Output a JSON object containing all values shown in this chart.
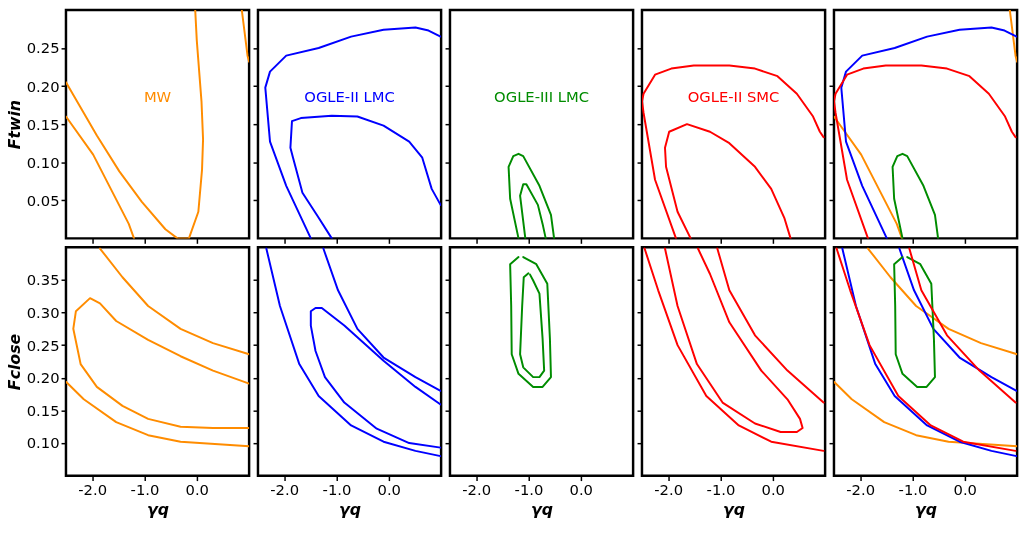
{
  "chart_data": [
    {
      "type": "line",
      "ylabel": "Ftwin",
      "annotations": [
        "MW"
      ],
      "tick_labels": "y",
      "xlim": [
        -2.5,
        1.0
      ],
      "ylim": [
        0,
        0.3
      ],
      "xticks": [
        -2,
        -1,
        0
      ],
      "yticks": [
        0.05,
        {
          "value": 0.1,
          "label": "0.10"
        },
        0.15,
        {
          "value": 0.2,
          "label": "0.20"
        },
        0.25
      ],
      "series": [
        {
          "color": "#ff8c00",
          "x": [
            -2.5,
            -1.91,
            -1.48,
            -1.05,
            -0.6,
            -0.37,
            -0.15,
            0.03,
            0.1,
            0.12,
            0.09,
            0.0,
            -0.03
          ],
          "values": [
            0.205,
            0.135,
            0.088,
            0.048,
            0.012,
            0.0,
            0.0,
            0.035,
            0.09,
            0.13,
            0.18,
            0.26,
            0.3
          ]
        },
        {
          "color": "#ff8c00",
          "x": [
            -2.5,
            -1.98,
            -1.3,
            -1.2,
            null,
            0.86,
            0.97,
            1.0
          ],
          "values": [
            0.16,
            0.11,
            0.019,
            0.0,
            null,
            0.3,
            0.24,
            0.232
          ]
        }
      ]
    },
    {
      "type": "line",
      "annotations": [
        "OGLE-II LMC"
      ],
      "tick_labels": false,
      "xlim": [
        -2.5,
        1.0
      ],
      "ylim": [
        0,
        0.3
      ],
      "xticks": [
        -2,
        -1,
        0
      ],
      "yticks": [
        0.05,
        0.1,
        0.15,
        0.2,
        0.25
      ],
      "series": [
        {
          "color": "#0000ff",
          "x": [
            -1.09,
            -1.34,
            -1.65,
            -1.83,
            -1.88,
            -1.85,
            -1.68,
            -1.09,
            -0.6,
            -0.1,
            0.39,
            0.64,
            0.82,
            0.99
          ],
          "values": [
            0.0,
            0.027,
            0.06,
            0.106,
            0.119,
            0.154,
            0.158,
            0.161,
            0.16,
            0.148,
            0.127,
            0.106,
            0.065,
            0.044
          ]
        },
        {
          "color": "#0000ff",
          "x": [
            -1.49,
            -1.96,
            -2.27,
            -2.36,
            -2.27,
            -1.96,
            -1.34,
            -0.72,
            -0.1,
            0.51,
            0.76,
            0.99
          ],
          "values": [
            0.0,
            0.069,
            0.127,
            0.198,
            0.219,
            0.24,
            0.25,
            0.265,
            0.274,
            0.277,
            0.273,
            0.265
          ]
        }
      ]
    },
    {
      "type": "line",
      "annotations": [
        "OGLE-III LMC"
      ],
      "tick_labels": false,
      "xlim": [
        -2.5,
        1.0
      ],
      "ylim": [
        0,
        0.3
      ],
      "xticks": [
        -2,
        -1,
        0
      ],
      "yticks": [
        0.05,
        0.1,
        0.15,
        0.2,
        0.25
      ],
      "series": [
        {
          "color": "#008c00",
          "x": [
            -1.06,
            -1.16,
            -1.1,
            -1.04,
            -0.82,
            -0.73,
            -0.67
          ],
          "values": [
            0.0,
            0.056,
            0.071,
            0.071,
            0.044,
            0.019,
            0.0
          ]
        },
        {
          "color": "#008c00",
          "x": [
            -1.19,
            -1.35,
            -1.38,
            -1.29,
            -1.19,
            -1.1,
            -0.79,
            -0.57,
            -0.51
          ],
          "values": [
            0.0,
            0.052,
            0.094,
            0.108,
            0.111,
            0.108,
            0.069,
            0.031,
            0.0
          ]
        }
      ]
    },
    {
      "type": "line",
      "annotations": [
        "OGLE-II SMC"
      ],
      "tick_labels": false,
      "xlim": [
        -2.5,
        1.0
      ],
      "ylim": [
        0,
        0.3
      ],
      "xticks": [
        -2,
        -1,
        0
      ],
      "yticks": [
        0.05,
        0.1,
        0.15,
        0.2,
        0.25
      ],
      "series": [
        {
          "color": "#ff0000",
          "x": [
            -1.57,
            -1.82,
            -2.04,
            -2.06,
            -1.98,
            -1.64,
            -1.2,
            -0.83,
            -0.34,
            -0.03,
            0.22,
            0.34
          ],
          "values": [
            0.0,
            0.035,
            0.094,
            0.119,
            0.14,
            0.15,
            0.14,
            0.125,
            0.094,
            0.065,
            0.027,
            0.0
          ]
        },
        {
          "color": "#ff0000",
          "x": [
            -1.85,
            -2.25,
            -2.47,
            -2.5,
            -2.47,
            -2.25,
            -1.94,
            -1.51,
            -0.83,
            -0.34,
            0.09,
            0.46,
            0.77,
            0.9,
            0.97
          ],
          "values": [
            0.0,
            0.077,
            0.165,
            0.18,
            0.19,
            0.215,
            0.223,
            0.227,
            0.227,
            0.223,
            0.213,
            0.19,
            0.16,
            0.14,
            0.133
          ]
        }
      ]
    },
    {
      "type": "line",
      "tick_labels": false,
      "xlim": [
        -2.5,
        1.0
      ],
      "ylim": [
        0,
        0.3
      ],
      "xticks": [
        -2,
        -1,
        0
      ],
      "yticks": [
        0.05,
        0.1,
        0.15,
        0.2,
        0.25
      ],
      "series": [
        {
          "color": "#ff8c00",
          "x": [
            -2.5,
            -1.98,
            -1.3,
            -1.2,
            null,
            0.86,
            0.97,
            1.0
          ],
          "values": [
            0.16,
            0.11,
            0.019,
            0.0,
            null,
            0.3,
            0.24,
            0.232
          ]
        },
        {
          "color": "#0000ff",
          "x": [
            -1.49,
            -1.96,
            -2.27,
            -2.36,
            -2.27,
            -1.96,
            -1.34,
            -0.72,
            -0.1,
            0.51,
            0.76,
            0.99
          ],
          "values": [
            0.0,
            0.069,
            0.127,
            0.198,
            0.219,
            0.24,
            0.25,
            0.265,
            0.274,
            0.277,
            0.273,
            0.265
          ]
        },
        {
          "color": "#008c00",
          "x": [
            -1.19,
            -1.35,
            -1.38,
            -1.29,
            -1.19,
            -1.1,
            -0.79,
            -0.57,
            -0.51
          ],
          "values": [
            0.0,
            0.052,
            0.094,
            0.108,
            0.111,
            0.108,
            0.069,
            0.031,
            0.0
          ]
        },
        {
          "color": "#ff0000",
          "x": [
            -1.85,
            -2.25,
            -2.47,
            -2.5,
            -2.47,
            -2.25,
            -1.94,
            -1.51,
            -0.83,
            -0.34,
            0.09,
            0.46,
            0.77,
            0.9,
            0.97
          ],
          "values": [
            0.0,
            0.077,
            0.165,
            0.18,
            0.19,
            0.215,
            0.223,
            0.227,
            0.227,
            0.223,
            0.213,
            0.19,
            0.16,
            0.14,
            0.133
          ]
        }
      ]
    },
    {
      "type": "line",
      "xlabel": "γq",
      "ylabel": "Fclose",
      "xlim": [
        -2.5,
        1.0
      ],
      "ylim": [
        0.05,
        0.4
      ],
      "xticks": [
        {
          "value": -2,
          "label": "-2.0"
        },
        {
          "value": -1,
          "label": "-1.0"
        },
        {
          "value": 0,
          "label": "0.0"
        }
      ],
      "yticks": [
        {
          "value": 0.1,
          "label": "0.10"
        },
        0.15,
        {
          "value": 0.2,
          "label": "0.20"
        },
        0.25,
        {
          "value": 0.3,
          "label": "0.30"
        },
        0.35
      ],
      "series": [
        {
          "color": "#ff8c00",
          "x": [
            1.0,
            0.31,
            -0.31,
            -0.93,
            -1.42,
            -1.91,
            -2.22,
            -2.36,
            -2.31,
            -2.04,
            -1.85,
            -1.54,
            -0.93,
            -0.31,
            0.31,
            1.0
          ],
          "values": [
            0.123,
            0.123,
            0.125,
            0.137,
            0.157,
            0.186,
            0.221,
            0.275,
            0.302,
            0.322,
            0.314,
            0.287,
            0.258,
            0.233,
            0.211,
            0.191
          ]
        },
        {
          "color": "#ff8c00",
          "x": [
            -1.85,
            -1.42,
            -0.93,
            -0.31,
            0.31,
            1.0,
            null,
            -2.5,
            -2.16,
            -1.54,
            -0.93,
            -0.31,
            1.0
          ],
          "values": [
            0.398,
            0.354,
            0.31,
            0.275,
            0.253,
            0.236,
            null,
            0.194,
            0.167,
            0.132,
            0.112,
            0.102,
            0.095
          ]
        }
      ]
    },
    {
      "type": "line",
      "xlabel": "γq",
      "tick_labels": "x",
      "xlim": [
        -2.5,
        1.0
      ],
      "ylim": [
        0.05,
        0.4
      ],
      "xticks": [
        {
          "value": -2,
          "label": "-2.0"
        },
        {
          "value": -1,
          "label": "-1.0"
        },
        {
          "value": 0,
          "label": "0.0"
        }
      ],
      "yticks": [
        0.1,
        0.15,
        0.2,
        0.25,
        0.3,
        0.35
      ],
      "series": [
        {
          "color": "#0000ff",
          "x": [
            0.99,
            0.51,
            -0.1,
            -0.85,
            -1.28,
            -1.4,
            -1.49,
            -1.49,
            -1.4,
            -1.22,
            -0.85,
            -0.23,
            0.39,
            0.99
          ],
          "values": [
            0.159,
            0.186,
            0.226,
            0.28,
            0.307,
            0.307,
            0.302,
            0.28,
            0.241,
            0.201,
            0.162,
            0.122,
            0.1,
            0.093
          ]
        },
        {
          "color": "#0000ff",
          "x": [
            -2.34,
            -2.08,
            -1.71,
            -1.34,
            -0.72,
            -0.1,
            0.51,
            0.99,
            null,
            -1.25,
            -0.97,
            -0.6,
            -0.1,
            0.51,
            0.99
          ],
          "values": [
            0.398,
            0.31,
            0.221,
            0.172,
            0.127,
            0.102,
            0.088,
            0.08,
            null,
            0.398,
            0.334,
            0.275,
            0.231,
            0.201,
            0.18
          ]
        }
      ]
    },
    {
      "type": "line",
      "xlabel": "γq",
      "tick_labels": "x",
      "xlim": [
        -2.5,
        1.0
      ],
      "ylim": [
        0.05,
        0.4
      ],
      "xticks": [
        {
          "value": -2,
          "label": "-2.0"
        },
        {
          "value": -1,
          "label": "-1.0"
        },
        {
          "value": 0,
          "label": "0.0"
        }
      ],
      "yticks": [
        0.1,
        0.15,
        0.2,
        0.25,
        0.3,
        0.35
      ],
      "series": [
        {
          "color": "#008c00",
          "x": [
            -1.0,
            -1.09,
            -1.12,
            -1.16,
            -1.1,
            -0.91,
            -0.79,
            -0.7,
            -0.73,
            -0.79,
            -0.91,
            -0.97
          ],
          "values": [
            0.36,
            0.354,
            0.31,
            0.236,
            0.216,
            0.201,
            0.201,
            0.211,
            0.26,
            0.329,
            0.349,
            0.358
          ]
        },
        {
          "color": "#008c00",
          "x": [
            -1.19,
            -1.35,
            -1.33,
            -1.32,
            -1.19,
            -0.91,
            -0.73,
            -0.57,
            -0.59,
            -0.64,
            -0.85,
            -1.1
          ],
          "values": [
            0.385,
            0.374,
            0.31,
            0.236,
            0.206,
            0.186,
            0.186,
            0.201,
            0.26,
            0.344,
            0.374,
            0.385
          ]
        }
      ]
    },
    {
      "type": "line",
      "xlabel": "γq",
      "tick_labels": "x",
      "xlim": [
        -2.5,
        1.0
      ],
      "ylim": [
        0.05,
        0.4
      ],
      "xticks": [
        {
          "value": -2,
          "label": "-2.0"
        },
        {
          "value": -1,
          "label": "-1.0"
        },
        {
          "value": 0,
          "label": "0.0"
        }
      ],
      "yticks": [
        0.1,
        0.15,
        0.2,
        0.25,
        0.3,
        0.35
      ],
      "series": [
        {
          "color": "#ff0000",
          "x": [
            -2.06,
            -1.82,
            -1.45,
            -0.96,
            -0.34,
            0.15,
            0.46,
            0.57,
            0.52,
            0.28,
            -0.22,
            -0.83,
            -1.2,
            -1.43
          ],
          "values": [
            0.398,
            0.31,
            0.221,
            0.162,
            0.13,
            0.117,
            0.117,
            0.123,
            0.137,
            0.167,
            0.211,
            0.285,
            0.359,
            0.398
          ]
        },
        {
          "color": "#ff0000",
          "x": [
            -2.45,
            -2.19,
            -1.82,
            -1.27,
            -0.65,
            -0.03,
            0.97,
            null,
            -1.06,
            -0.83,
            -0.34,
            0.28,
            0.97
          ],
          "values": [
            0.398,
            0.334,
            0.25,
            0.172,
            0.127,
            0.102,
            0.088,
            null,
            0.398,
            0.334,
            0.265,
            0.211,
            0.162
          ]
        }
      ]
    },
    {
      "type": "line",
      "xlabel": "γq",
      "tick_labels": "x",
      "xlim": [
        -2.5,
        1.0
      ],
      "ylim": [
        0.05,
        0.4
      ],
      "xticks": [
        {
          "value": -2,
          "label": "-2.0"
        },
        {
          "value": -1,
          "label": "-1.0"
        },
        {
          "value": 0,
          "label": "0.0"
        }
      ],
      "yticks": [
        0.1,
        0.15,
        0.2,
        0.25,
        0.3,
        0.35
      ],
      "series": [
        {
          "color": "#ff8c00",
          "x": [
            -1.85,
            -1.42,
            -0.93,
            -0.31,
            0.31,
            1.0,
            null,
            -2.5,
            -2.16,
            -1.54,
            -0.93,
            -0.31,
            1.0
          ],
          "values": [
            0.398,
            0.354,
            0.31,
            0.275,
            0.253,
            0.236,
            null,
            0.194,
            0.167,
            0.132,
            0.112,
            0.102,
            0.095
          ]
        },
        {
          "color": "#0000ff",
          "x": [
            -2.34,
            -2.08,
            -1.71,
            -1.34,
            -0.72,
            -0.1,
            0.51,
            0.99,
            null,
            -1.25,
            -0.97,
            -0.6,
            -0.1,
            0.51,
            0.99
          ],
          "values": [
            0.398,
            0.31,
            0.221,
            0.172,
            0.127,
            0.102,
            0.088,
            0.08,
            null,
            0.398,
            0.334,
            0.275,
            0.231,
            0.201,
            0.18
          ]
        },
        {
          "color": "#008c00",
          "x": [
            -1.19,
            -1.35,
            -1.33,
            -1.32,
            -1.19,
            -0.91,
            -0.73,
            -0.57,
            -0.59,
            -0.64,
            -0.85,
            -1.1
          ],
          "values": [
            0.385,
            0.374,
            0.31,
            0.236,
            0.206,
            0.186,
            0.186,
            0.201,
            0.26,
            0.344,
            0.374,
            0.385
          ]
        },
        {
          "color": "#ff0000",
          "x": [
            -2.45,
            -2.19,
            -1.82,
            -1.27,
            -0.65,
            -0.03,
            0.97,
            null,
            -1.06,
            -0.83,
            -0.34,
            0.28,
            0.97
          ],
          "values": [
            0.398,
            0.334,
            0.25,
            0.172,
            0.127,
            0.102,
            0.088,
            null,
            0.398,
            0.334,
            0.265,
            0.211,
            0.162
          ]
        }
      ]
    }
  ]
}
